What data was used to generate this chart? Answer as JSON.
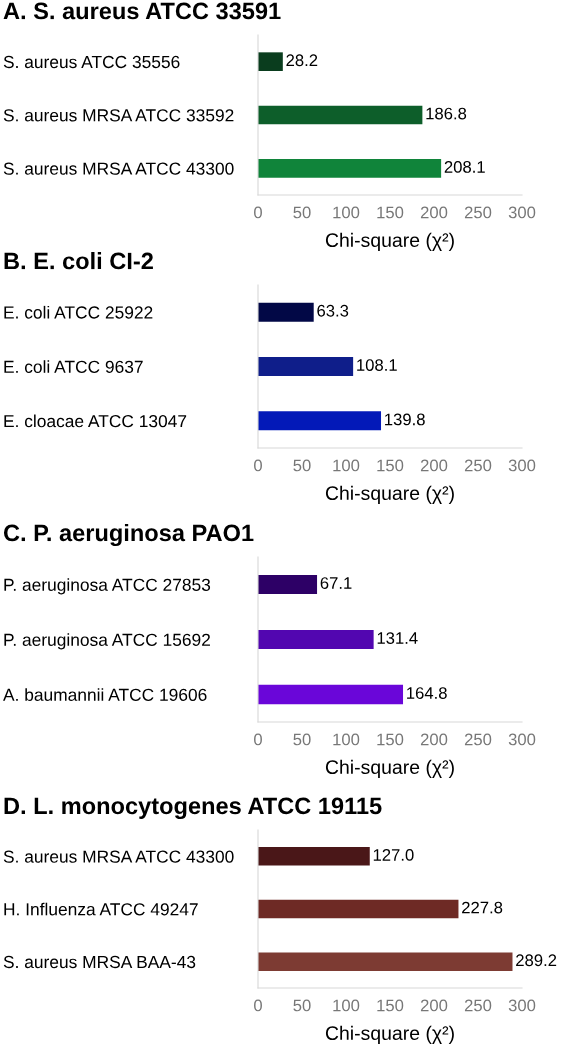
{
  "chart_data": [
    {
      "type": "bar",
      "orientation": "horizontal",
      "title": "A. S. aureus ATCC 33591",
      "categories": [
        "S. aureus ATCC 35556",
        "S. aureus MRSA ATCC 33592",
        "S. aureus MRSA ATCC 43300"
      ],
      "values": [
        28.2,
        186.8,
        208.1
      ],
      "colors": [
        "#0a3d1e",
        "#0d5e2a",
        "#10843a"
      ],
      "xlim": [
        0,
        300
      ],
      "xticks": [
        0,
        50,
        100,
        150,
        200,
        250,
        300
      ],
      "xlabel": "Chi-square (χ²)",
      "data_labels": true,
      "grid": false,
      "legend": false
    },
    {
      "type": "bar",
      "orientation": "horizontal",
      "title": "B. E. coli CI-2",
      "categories": [
        "E. coli ATCC 25922",
        "E. coli ATCC 9637",
        "E. cloacae ATCC 13047"
      ],
      "values": [
        63.3,
        108.1,
        139.8
      ],
      "colors": [
        "#020846",
        "#0f1e8a",
        "#0319b8"
      ],
      "xlim": [
        0,
        300
      ],
      "xticks": [
        0,
        50,
        100,
        150,
        200,
        250,
        300
      ],
      "xlabel": "Chi-square (χ²)",
      "data_labels": true,
      "grid": false,
      "legend": false
    },
    {
      "type": "bar",
      "orientation": "horizontal",
      "title": "C. P. aeruginosa PAO1",
      "categories": [
        "P. aeruginosa ATCC 27853",
        "P. aeruginosa ATCC 15692",
        "A. baumannii ATCC 19606"
      ],
      "values": [
        67.1,
        131.4,
        164.8
      ],
      "colors": [
        "#2d0066",
        "#5206b0",
        "#6a06d9"
      ],
      "xlim": [
        0,
        300
      ],
      "xticks": [
        0,
        50,
        100,
        150,
        200,
        250,
        300
      ],
      "xlabel": "Chi-square (χ²)",
      "data_labels": true,
      "grid": false,
      "legend": false
    },
    {
      "type": "bar",
      "orientation": "horizontal",
      "title": "D. L. monocytogenes ATCC 19115",
      "categories": [
        "S. aureus MRSA ATCC 43300",
        "H. Influenza ATCC 49247",
        "S. aureus MRSA BAA-43"
      ],
      "values": [
        127.0,
        227.8,
        289.2
      ],
      "colors": [
        "#4a1718",
        "#6e2a25",
        "#7d3b33"
      ],
      "xlim": [
        0,
        300
      ],
      "xticks": [
        0,
        50,
        100,
        150,
        200,
        250,
        300
      ],
      "xlabel": "Chi-square (χ²)",
      "value_labels": [
        "127.0",
        "227.8",
        "289.2"
      ],
      "grid": false,
      "legend": false
    }
  ]
}
